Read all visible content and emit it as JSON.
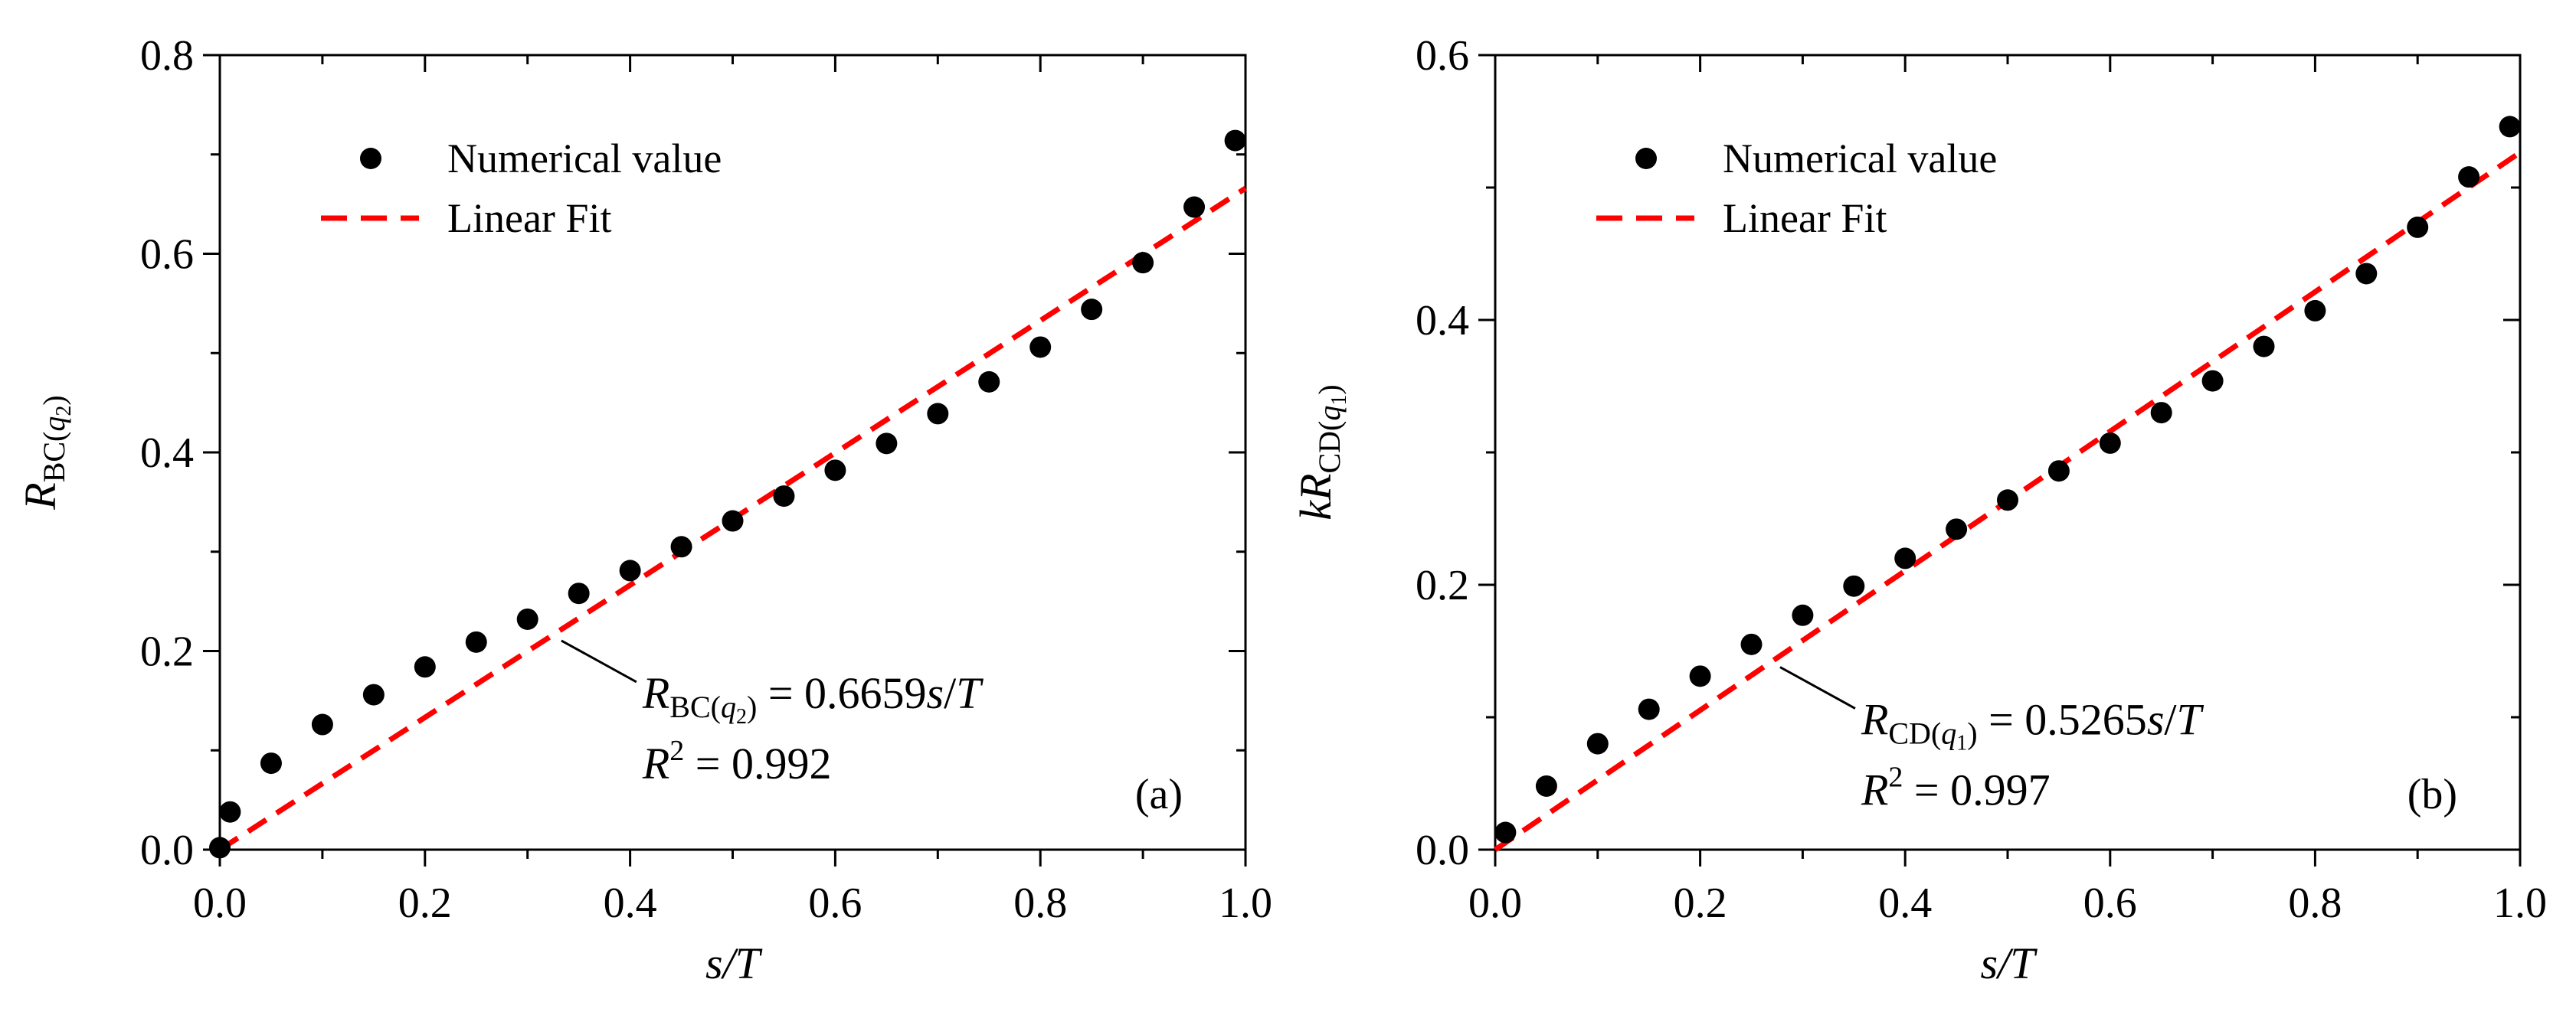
{
  "figure": {
    "panels_count": 2
  },
  "chart_data": [
    {
      "type": "scatter",
      "panel_label": "(a)",
      "xlabel": "s/T",
      "ylabel": {
        "main": "R",
        "sub": "BC(",
        "sub_var": "q",
        "sub_var_sub": "2",
        "sub_close": ")"
      },
      "xlim": [
        0,
        1.0
      ],
      "ylim": [
        0,
        0.8
      ],
      "x_ticks": [
        0.0,
        0.2,
        0.4,
        0.6,
        0.8,
        1.0
      ],
      "x_tick_labels": [
        "0.0",
        "0.2",
        "0.4",
        "0.6",
        "0.8",
        "1.0"
      ],
      "y_ticks": [
        0.0,
        0.2,
        0.4,
        0.6,
        0.8
      ],
      "y_tick_labels": [
        "0.0",
        "0.2",
        "0.4",
        "0.6",
        "0.8"
      ],
      "grid": false,
      "legend": {
        "placement": "top-left",
        "entries": [
          "Numerical value",
          "Linear Fit"
        ]
      },
      "series": [
        {
          "name": "Numerical value",
          "kind": "marker",
          "x": [
            0.0,
            0.01,
            0.05,
            0.1,
            0.15,
            0.2,
            0.25,
            0.3,
            0.35,
            0.4,
            0.45,
            0.5,
            0.55,
            0.6,
            0.65,
            0.7,
            0.75,
            0.8,
            0.85,
            0.9,
            0.95,
            0.99
          ],
          "y": [
            0.002,
            0.038,
            0.087,
            0.126,
            0.156,
            0.184,
            0.209,
            0.232,
            0.258,
            0.281,
            0.305,
            0.331,
            0.356,
            0.382,
            0.409,
            0.439,
            0.471,
            0.506,
            0.544,
            0.591,
            0.647,
            0.714
          ]
        },
        {
          "name": "Linear Fit",
          "kind": "dashed-line",
          "slope": 0.6659,
          "x_range": [
            0.0,
            1.0
          ]
        }
      ],
      "annotation": {
        "lhs": "R",
        "lhs_sub": "BC(",
        "lhs_sub_var": "q",
        "lhs_sub_var_sub": "2",
        "lhs_sub_close": ")",
        "rhs": " = 0.6659",
        "rhs_var": "s",
        "rhs_slash": "/",
        "rhs_var2": "T",
        "r2_var": "R",
        "r2_sup": "2",
        "r2_value": " = 0.992",
        "pointer_x": 0.33
      },
      "colors": {
        "markers": "#000000",
        "fit": "#ff0000"
      }
    },
    {
      "type": "scatter",
      "panel_label": "(b)",
      "xlabel": "s/T",
      "ylabel": {
        "pre": "k",
        "main": "R",
        "sub": "CD(",
        "sub_var": "q",
        "sub_var_sub": "1",
        "sub_close": ")"
      },
      "xlim": [
        0,
        1.0
      ],
      "ylim": [
        0,
        0.6
      ],
      "x_ticks": [
        0.0,
        0.2,
        0.4,
        0.6,
        0.8,
        1.0
      ],
      "x_tick_labels": [
        "0.0",
        "0.2",
        "0.4",
        "0.6",
        "0.8",
        "1.0"
      ],
      "y_ticks": [
        0.0,
        0.2,
        0.4,
        0.6
      ],
      "y_tick_labels": [
        "0.0",
        "0.2",
        "0.4",
        "0.6"
      ],
      "grid": false,
      "legend": {
        "placement": "top-left",
        "entries": [
          "Numerical value",
          "Linear Fit"
        ]
      },
      "series": [
        {
          "name": "Numerical value",
          "kind": "marker",
          "x": [
            0.01,
            0.05,
            0.1,
            0.15,
            0.2,
            0.25,
            0.3,
            0.35,
            0.4,
            0.45,
            0.5,
            0.55,
            0.6,
            0.65,
            0.7,
            0.75,
            0.8,
            0.85,
            0.9,
            0.95,
            0.99
          ],
          "y": [
            0.013,
            0.048,
            0.08,
            0.106,
            0.131,
            0.155,
            0.177,
            0.199,
            0.22,
            0.242,
            0.264,
            0.286,
            0.307,
            0.33,
            0.354,
            0.38,
            0.407,
            0.435,
            0.47,
            0.508,
            0.546
          ]
        },
        {
          "name": "Linear Fit",
          "kind": "dashed-line",
          "slope": 0.5265,
          "x_range": [
            0.0,
            1.0
          ]
        }
      ],
      "annotation": {
        "lhs": "R",
        "lhs_sub": "CD(",
        "lhs_sub_var": "q",
        "lhs_sub_var_sub": "1",
        "lhs_sub_close": ")",
        "rhs": " = 0.5265",
        "rhs_var": "s",
        "rhs_slash": "/",
        "rhs_var2": "T",
        "r2_var": "R",
        "r2_sup": "2",
        "r2_value": " = 0.997",
        "pointer_x": 0.275
      },
      "colors": {
        "markers": "#000000",
        "fit": "#ff0000"
      }
    }
  ]
}
